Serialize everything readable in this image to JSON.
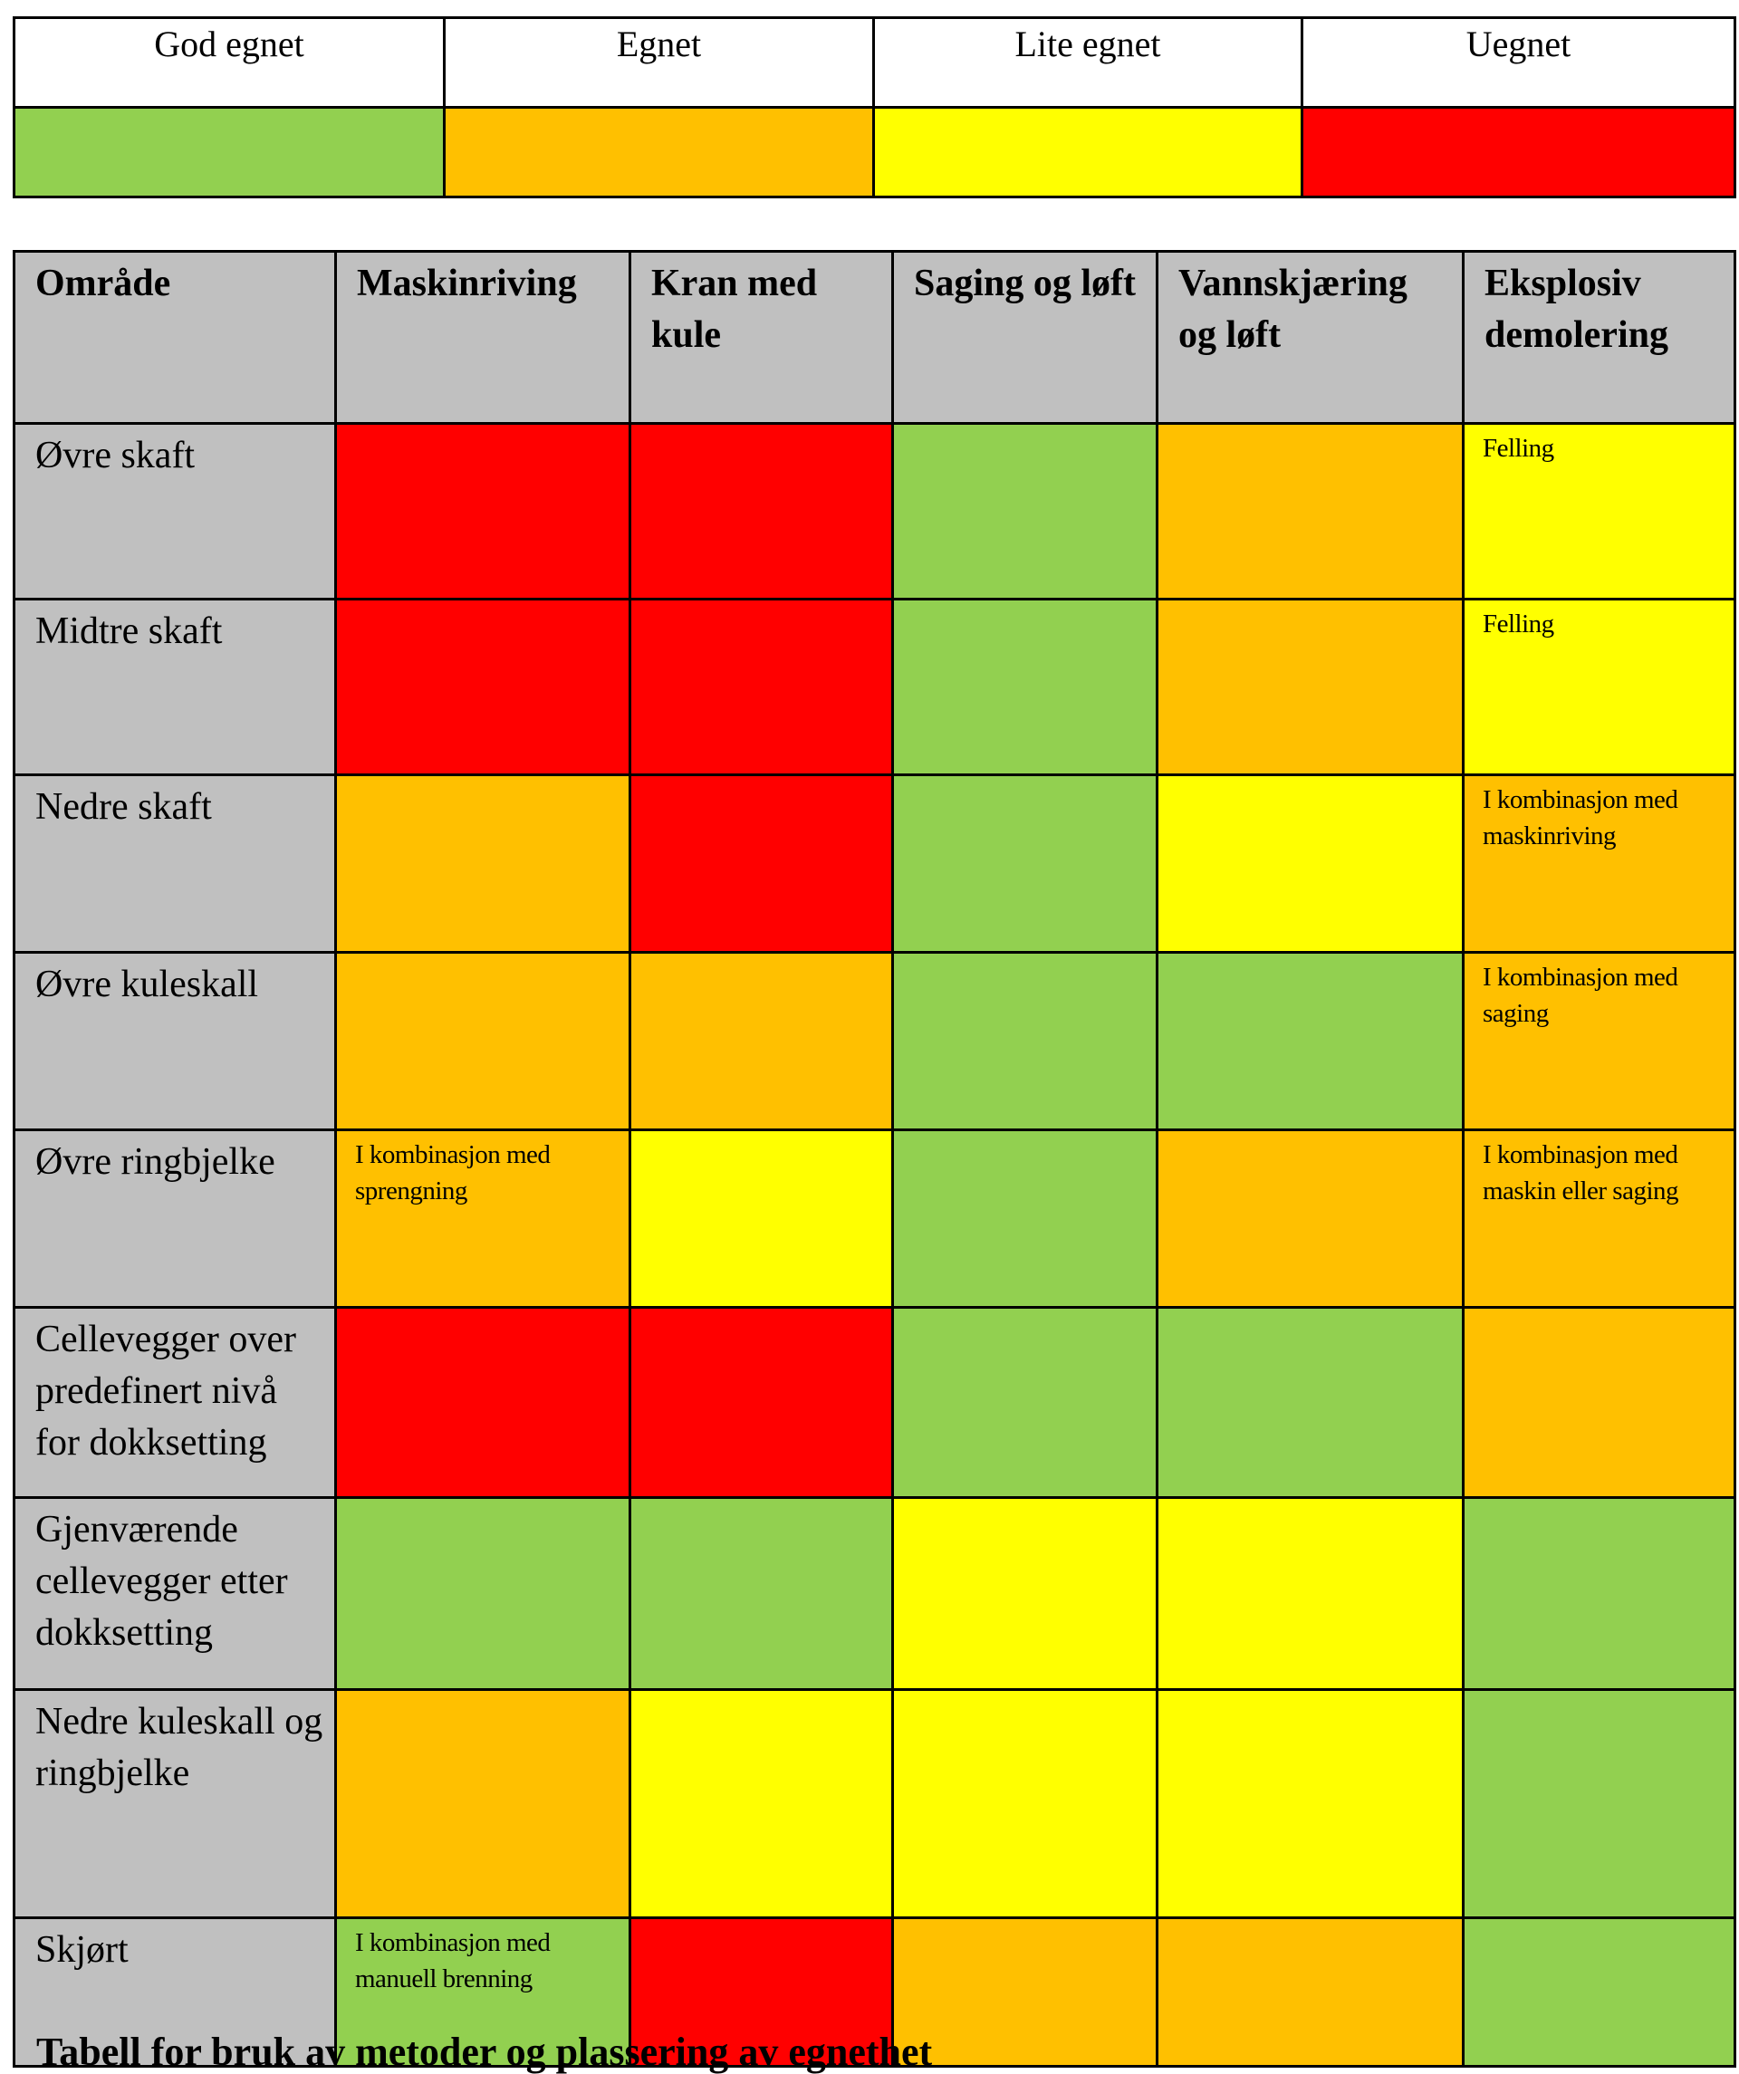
{
  "legend": {
    "items": [
      {
        "label": "God egnet",
        "color": "#92d050"
      },
      {
        "label": "Egnet",
        "color": "#ffc000"
      },
      {
        "label": "Lite egnet",
        "color": "#ffff00"
      },
      {
        "label": "Uegnet",
        "color": "#ff0000"
      }
    ]
  },
  "matrix": {
    "headers": [
      "Område",
      "Maskinriving",
      "Kran med kule",
      "Saging og løft",
      "Vannskjæring og løft",
      "Eksplosiv demolering"
    ],
    "rows": [
      {
        "area": "Øvre skaft",
        "cells": [
          {
            "rating": "Uegnet",
            "note": ""
          },
          {
            "rating": "Uegnet",
            "note": ""
          },
          {
            "rating": "God egnet",
            "note": ""
          },
          {
            "rating": "Egnet",
            "note": ""
          },
          {
            "rating": "Lite egnet",
            "note": "Felling"
          }
        ]
      },
      {
        "area": "Midtre skaft",
        "cells": [
          {
            "rating": "Uegnet",
            "note": ""
          },
          {
            "rating": "Uegnet",
            "note": ""
          },
          {
            "rating": "God egnet",
            "note": ""
          },
          {
            "rating": "Egnet",
            "note": ""
          },
          {
            "rating": "Lite egnet",
            "note": "Felling"
          }
        ]
      },
      {
        "area": "Nedre skaft",
        "cells": [
          {
            "rating": "Egnet",
            "note": ""
          },
          {
            "rating": "Uegnet",
            "note": ""
          },
          {
            "rating": "God egnet",
            "note": ""
          },
          {
            "rating": "Lite egnet",
            "note": ""
          },
          {
            "rating": "Egnet",
            "note": "I kombinasjon med maskinriving"
          }
        ]
      },
      {
        "area": "Øvre kuleskall",
        "cells": [
          {
            "rating": "Egnet",
            "note": ""
          },
          {
            "rating": "Egnet",
            "note": ""
          },
          {
            "rating": "God egnet",
            "note": ""
          },
          {
            "rating": "God egnet",
            "note": ""
          },
          {
            "rating": "Egnet",
            "note": "I kombinasjon med saging"
          }
        ]
      },
      {
        "area": "Øvre ringbjelke",
        "cells": [
          {
            "rating": "Egnet",
            "note": "I kombinasjon med sprengning"
          },
          {
            "rating": "Lite egnet",
            "note": ""
          },
          {
            "rating": "God egnet",
            "note": ""
          },
          {
            "rating": "Egnet",
            "note": ""
          },
          {
            "rating": "Egnet",
            "note": "I kombinasjon med maskin eller saging"
          }
        ]
      },
      {
        "area": "Cellevegger over predefinert nivå for dokksetting",
        "cells": [
          {
            "rating": "Uegnet",
            "note": ""
          },
          {
            "rating": "Uegnet",
            "note": ""
          },
          {
            "rating": "God egnet",
            "note": ""
          },
          {
            "rating": "God egnet",
            "note": ""
          },
          {
            "rating": "Egnet",
            "note": ""
          }
        ]
      },
      {
        "area": "Gjenværende cellevegger etter dokksetting",
        "cells": [
          {
            "rating": "God egnet",
            "note": ""
          },
          {
            "rating": "God egnet",
            "note": ""
          },
          {
            "rating": "Lite egnet",
            "note": ""
          },
          {
            "rating": "Lite egnet",
            "note": ""
          },
          {
            "rating": "God egnet",
            "note": ""
          }
        ]
      },
      {
        "area": "Nedre kuleskall og ringbjelke",
        "cells": [
          {
            "rating": "Egnet",
            "note": ""
          },
          {
            "rating": "Lite egnet",
            "note": ""
          },
          {
            "rating": "Lite egnet",
            "note": ""
          },
          {
            "rating": "Lite egnet",
            "note": ""
          },
          {
            "rating": "God egnet",
            "note": ""
          }
        ]
      },
      {
        "area": "Skjørt",
        "cells": [
          {
            "rating": "God egnet",
            "note": "I kombinasjon med manuell brenning"
          },
          {
            "rating": "Uegnet",
            "note": ""
          },
          {
            "rating": "Egnet",
            "note": ""
          },
          {
            "rating": "Egnet",
            "note": ""
          },
          {
            "rating": "God egnet",
            "note": ""
          }
        ]
      }
    ]
  },
  "caption": "Tabell for bruk av metoder og plassering av egnethet"
}
